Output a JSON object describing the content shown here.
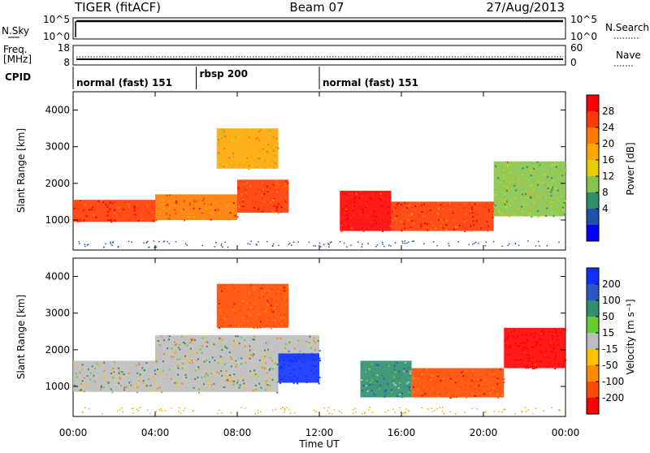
{
  "header": {
    "radar": "TIGER (fitACF)",
    "beam": "Beam 07",
    "date": "27/Aug/2013"
  },
  "status_panel": {
    "nsky_label": "N.Sky",
    "nsky_ticks": [
      "10^5",
      "10^0"
    ],
    "nsearch_label": "N.Search",
    "nsearch_ticks": [
      "10^5",
      "10^0"
    ],
    "freq_label_1": "Freq.",
    "freq_label_2": "[MHz]",
    "freq_ticks": [
      "18",
      "8"
    ],
    "nave_label": "Nave",
    "nave_ticks": [
      "60",
      "0"
    ],
    "cpid_label": "CPID",
    "cpid_segments": [
      {
        "label": "normal (fast) 151",
        "start_hour": 0,
        "end_hour": 6
      },
      {
        "label": "rbsp 200",
        "start_hour": 6,
        "end_hour": 12
      },
      {
        "label": "normal (fast) 151",
        "start_hour": 12,
        "end_hour": 24
      }
    ]
  },
  "axes": {
    "ylabel": "Slant Range [km]",
    "yticks": [
      1000,
      2000,
      3000,
      4000
    ],
    "xlabel": "Time UT",
    "xticks": [
      "00:00",
      "04:00",
      "08:00",
      "12:00",
      "16:00",
      "20:00",
      "00:00"
    ]
  },
  "colorbars": {
    "power": {
      "label": "Power [dB]",
      "ticks": [
        "28",
        "24",
        "20",
        "16",
        "12",
        "8",
        "4"
      ],
      "colors": [
        "#ff0000",
        "#ff3a00",
        "#ff7a00",
        "#ffa600",
        "#e6cc00",
        "#86c34a",
        "#2f8f6a",
        "#2050b0",
        "#0000ff"
      ]
    },
    "velocity": {
      "label": "Velocity [m s⁻¹]",
      "ticks": [
        "200",
        "100",
        "50",
        "15",
        "-15",
        "-50",
        "-100",
        "-200"
      ],
      "colors": [
        "#1030ff",
        "#2a58c8",
        "#2f8f6a",
        "#66cc33",
        "#bdbdbd",
        "#ffc000",
        "#ff8a00",
        "#ff4a00",
        "#ff0000"
      ]
    }
  },
  "chart_data": [
    {
      "type": "heatmap",
      "title": "Power",
      "xlabel": "Time UT",
      "ylabel": "Slant Range [km]",
      "xlim_hours": [
        0,
        24
      ],
      "ylim_km": [
        180,
        4500
      ],
      "colorbar_label": "Power [dB]",
      "features": [
        {
          "start_hour": 0.0,
          "end_hour": 4.0,
          "range_low_km": 950,
          "range_high_km": 1550,
          "dB": 26
        },
        {
          "start_hour": 4.0,
          "end_hour": 8.0,
          "range_low_km": 1000,
          "range_high_km": 1700,
          "dB": 22
        },
        {
          "start_hour": 8.0,
          "end_hour": 10.5,
          "range_low_km": 1200,
          "range_high_km": 2100,
          "dB": 24
        },
        {
          "start_hour": 7.0,
          "end_hour": 10.0,
          "range_low_km": 2400,
          "range_high_km": 3500,
          "dB": 16
        },
        {
          "start_hour": 13.0,
          "end_hour": 15.5,
          "range_low_km": 700,
          "range_high_km": 1800,
          "dB": 28
        },
        {
          "start_hour": 15.5,
          "end_hour": 20.5,
          "range_low_km": 700,
          "range_high_km": 1500,
          "dB": 24
        },
        {
          "start_hour": 20.5,
          "end_hour": 24.0,
          "range_low_km": 1100,
          "range_high_km": 2600,
          "dB": 12
        }
      ]
    },
    {
      "type": "heatmap",
      "title": "Velocity",
      "xlabel": "Time UT",
      "ylabel": "Slant Range [km]",
      "xlim_hours": [
        0,
        24
      ],
      "ylim_km": [
        180,
        4500
      ],
      "colorbar_label": "Velocity [m s⁻¹]",
      "features": [
        {
          "start_hour": 0.0,
          "end_hour": 10.0,
          "range_low_km": 850,
          "range_high_km": 1700,
          "velocity": 0
        },
        {
          "start_hour": 4.0,
          "end_hour": 12.0,
          "range_low_km": 1700,
          "range_high_km": 2400,
          "velocity": 0
        },
        {
          "start_hour": 7.0,
          "end_hour": 10.5,
          "range_low_km": 2600,
          "range_high_km": 3800,
          "velocity": -100
        },
        {
          "start_hour": 10.0,
          "end_hour": 12.0,
          "range_low_km": 1100,
          "range_high_km": 1900,
          "velocity": 200
        },
        {
          "start_hour": 14.0,
          "end_hour": 16.5,
          "range_low_km": 700,
          "range_high_km": 1700,
          "velocity": 50
        },
        {
          "start_hour": 16.5,
          "end_hour": 21.0,
          "range_low_km": 700,
          "range_high_km": 1500,
          "velocity": -100
        },
        {
          "start_hour": 21.0,
          "end_hour": 24.0,
          "range_low_km": 1500,
          "range_high_km": 2600,
          "velocity": -200
        }
      ]
    }
  ]
}
